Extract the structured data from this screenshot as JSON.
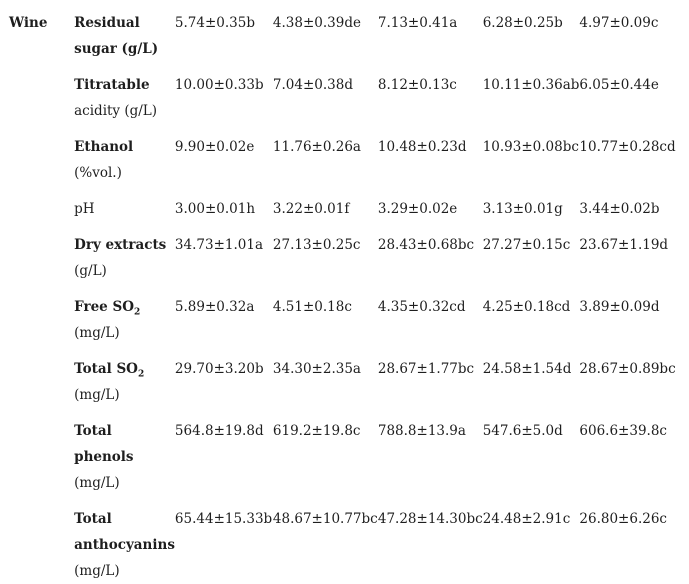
{
  "group_label": "Wine",
  "rows": [
    {
      "name_lines": [
        "Residual",
        "sugar (g/L)"
      ],
      "unit_line_index": null,
      "values": [
        "5.74±0.35b",
        "4.38±0.39de",
        "7.13±0.41a",
        "6.28±0.25b",
        "4.97±0.09c"
      ]
    },
    {
      "name_lines": [
        "Titratable",
        "acidity (g/L)"
      ],
      "values": [
        "10.00±0.33b",
        "7.04±0.38d",
        "8.12±0.13c",
        "10.11±0.36ab",
        "6.05±0.44e"
      ]
    },
    {
      "name_lines": [
        "Ethanol",
        "(%vol.)"
      ],
      "values": [
        "9.90±0.02e",
        "11.76±0.26a",
        "10.48±0.23d",
        "10.93±0.08bc",
        "10.77±0.28cd"
      ]
    },
    {
      "name_lines": [
        "pH"
      ],
      "values": [
        "3.00±0.01h",
        "3.22±0.01f",
        "3.29±0.02e",
        "3.13±0.01g",
        "3.44±0.02b"
      ]
    },
    {
      "name_lines": [
        "Dry extracts",
        "(g/L)"
      ],
      "values": [
        "34.73±1.01a",
        "27.13±0.25c",
        "28.43±0.68bc",
        "27.27±0.15c",
        "23.67±1.19d"
      ]
    },
    {
      "name_prefix": "Free SO",
      "name_sub": "2",
      "name_unit": "(mg/L)",
      "values": [
        "5.89±0.32a",
        "4.51±0.18c",
        "4.35±0.32cd",
        "4.25±0.18cd",
        "3.89±0.09d"
      ]
    },
    {
      "name_prefix": "Total SO",
      "name_sub": "2",
      "name_unit": "(mg/L)",
      "values": [
        "29.70±3.20b",
        "34.30±2.35a",
        "28.67±1.77bc",
        "24.58±1.54d",
        "28.67±0.89bc"
      ]
    },
    {
      "name_lines": [
        "Total phenols",
        "(mg/L)"
      ],
      "values": [
        "564.8±19.8d",
        "619.2±19.8c",
        "788.8±13.9a",
        "547.6±5.0d",
        "606.6±39.8c"
      ]
    },
    {
      "name_lines": [
        "Total",
        "anthocyanins",
        "(mg/L)"
      ],
      "values": [
        "65.44±15.33b",
        "48.67±10.77bc",
        "47.28±14.30bc",
        "24.48±2.91c",
        "26.80±6.26c"
      ]
    }
  ]
}
